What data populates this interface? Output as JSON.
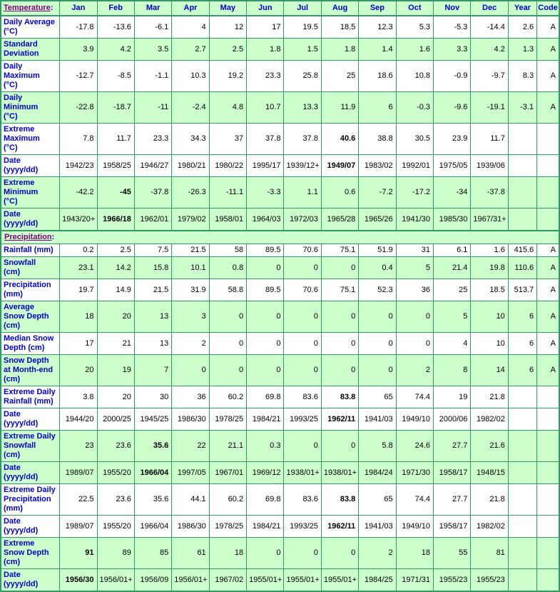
{
  "colors": {
    "border": "#339966",
    "cell_green": "#ccffcc",
    "header_text": "#0000cc",
    "label_text": "#0000cc",
    "section_link": "#800080",
    "data_text": "#000000"
  },
  "header": {
    "section_label": "Temperature",
    "colon": ":",
    "months": [
      "Jan",
      "Feb",
      "Mar",
      "Apr",
      "May",
      "Jun",
      "Jul",
      "Aug",
      "Sep",
      "Oct",
      "Nov",
      "Dec"
    ],
    "year_label": "Year",
    "code_label": "Code"
  },
  "temperature_rows": [
    {
      "label": "Daily Average\n(°C)",
      "shaded": false,
      "bold": [],
      "values": [
        "-17.8",
        "-13.6",
        "-6.1",
        "4",
        "12",
        "17",
        "19.5",
        "18.5",
        "12.3",
        "5.3",
        "-5.3",
        "-14.4",
        "2.6",
        "A"
      ]
    },
    {
      "label": "Standard\nDeviation",
      "shaded": true,
      "bold": [],
      "values": [
        "3.9",
        "4.2",
        "3.5",
        "2.7",
        "2.5",
        "1.8",
        "1.5",
        "1.8",
        "1.4",
        "1.6",
        "3.3",
        "4.2",
        "1.3",
        "A"
      ]
    },
    {
      "label": "Daily\nMaximum\n(°C)",
      "shaded": false,
      "bold": [],
      "values": [
        "-12.7",
        "-8.5",
        "-1.1",
        "10.3",
        "19.2",
        "23.3",
        "25.8",
        "25",
        "18.6",
        "10.8",
        "-0.9",
        "-9.7",
        "8.3",
        "A"
      ]
    },
    {
      "label": "Daily\nMinimum\n(°C)",
      "shaded": true,
      "bold": [],
      "values": [
        "-22.8",
        "-18.7",
        "-11",
        "-2.4",
        "4.8",
        "10.7",
        "13.3",
        "11.9",
        "6",
        "-0.3",
        "-9.6",
        "-19.1",
        "-3.1",
        "A"
      ]
    },
    {
      "label": "Extreme\nMaximum\n(°C)",
      "shaded": false,
      "bold": [
        7
      ],
      "values": [
        "7.8",
        "11.7",
        "23.3",
        "34.3",
        "37",
        "37.8",
        "37.8",
        "40.6",
        "38.8",
        "30.5",
        "23.9",
        "11.7",
        "",
        ""
      ]
    },
    {
      "label": "Date\n(yyyy/dd)",
      "shaded": false,
      "bold": [
        7
      ],
      "values": [
        "1942/23",
        "1958/25",
        "1946/27",
        "1980/21",
        "1980/22",
        "1995/17",
        "1939/12+",
        "1949/07",
        "1983/02",
        "1992/01",
        "1975/05",
        "1939/06",
        "",
        ""
      ]
    },
    {
      "label": "Extreme\nMinimum\n(°C)",
      "shaded": true,
      "bold": [
        1
      ],
      "values": [
        "-42.2",
        "-45",
        "-37.8",
        "-26.3",
        "-11.1",
        "-3.3",
        "1.1",
        "0.6",
        "-7.2",
        "-17.2",
        "-34",
        "-37.8",
        "",
        ""
      ]
    },
    {
      "label": "Date\n(yyyy/dd)",
      "shaded": true,
      "bold": [
        1
      ],
      "values": [
        "1943/20+",
        "1966/18",
        "1962/01",
        "1979/02",
        "1958/01",
        "1964/03",
        "1972/03",
        "1965/28",
        "1965/26",
        "1941/30",
        "1985/30",
        "1967/31+",
        "",
        ""
      ]
    }
  ],
  "precipitation": {
    "section_label": "Precipitation",
    "colon": ":"
  },
  "precipitation_rows": [
    {
      "label": "Rainfall (mm)",
      "shaded": false,
      "bold": [],
      "values": [
        "0.2",
        "2.5",
        "7.5",
        "21.5",
        "58",
        "89.5",
        "70.6",
        "75.1",
        "51.9",
        "31",
        "6.1",
        "1.6",
        "415.6",
        "A"
      ]
    },
    {
      "label": "Snowfall\n(cm)",
      "shaded": true,
      "bold": [],
      "values": [
        "23.1",
        "14.2",
        "15.8",
        "10.1",
        "0.8",
        "0",
        "0",
        "0",
        "0.4",
        "5",
        "21.4",
        "19.8",
        "110.6",
        "A"
      ]
    },
    {
      "label": "Precipitation\n(mm)",
      "shaded": false,
      "bold": [],
      "values": [
        "19.7",
        "14.9",
        "21.5",
        "31.9",
        "58.8",
        "89.5",
        "70.6",
        "75.1",
        "52.3",
        "36",
        "25",
        "18.5",
        "513.7",
        "A"
      ]
    },
    {
      "label": "Average\nSnow Depth\n(cm)",
      "shaded": true,
      "bold": [],
      "values": [
        "18",
        "20",
        "13",
        "3",
        "0",
        "0",
        "0",
        "0",
        "0",
        "0",
        "5",
        "10",
        "6",
        "A"
      ]
    },
    {
      "label": "Median Snow\nDepth (cm)",
      "shaded": false,
      "bold": [],
      "values": [
        "17",
        "21",
        "13",
        "2",
        "0",
        "0",
        "0",
        "0",
        "0",
        "0",
        "4",
        "10",
        "6",
        "A"
      ]
    },
    {
      "label": "Snow Depth\nat Month-end\n(cm)",
      "shaded": true,
      "bold": [],
      "values": [
        "20",
        "19",
        "7",
        "0",
        "0",
        "0",
        "0",
        "0",
        "0",
        "2",
        "8",
        "14",
        "6",
        "A"
      ]
    },
    {
      "label": "Extreme Daily\nRainfall (mm)",
      "shaded": false,
      "bold": [
        7
      ],
      "values": [
        "3.8",
        "20",
        "30",
        "36",
        "60.2",
        "69.8",
        "83.6",
        "83.8",
        "65",
        "74.4",
        "19",
        "21.8",
        "",
        ""
      ]
    },
    {
      "label": "Date\n(yyyy/dd)",
      "shaded": false,
      "bold": [
        7
      ],
      "values": [
        "1944/20",
        "2000/25",
        "1945/25",
        "1986/30",
        "1978/25",
        "1984/21",
        "1993/25",
        "1962/11",
        "1941/03",
        "1949/10",
        "2000/06",
        "1982/02",
        "",
        ""
      ]
    },
    {
      "label": "Extreme Daily\nSnowfall\n(cm)",
      "shaded": true,
      "bold": [
        2
      ],
      "values": [
        "23",
        "23.6",
        "35.6",
        "22",
        "21.1",
        "0.3",
        "0",
        "0",
        "5.8",
        "24.6",
        "27.7",
        "21.6",
        "",
        ""
      ]
    },
    {
      "label": "Date\n(yyyy/dd)",
      "shaded": true,
      "bold": [
        2
      ],
      "values": [
        "1989/07",
        "1955/20",
        "1966/04",
        "1997/05",
        "1967/01",
        "1969/12",
        "1938/01+",
        "1938/01+",
        "1984/24",
        "1971/30",
        "1958/17",
        "1948/15",
        "",
        ""
      ]
    },
    {
      "label": "Extreme Daily\nPrecipitation\n(mm)",
      "shaded": false,
      "bold": [
        7
      ],
      "values": [
        "22.5",
        "23.6",
        "35.6",
        "44.1",
        "60.2",
        "69.8",
        "83.6",
        "83.8",
        "65",
        "74.4",
        "27.7",
        "21.8",
        "",
        ""
      ]
    },
    {
      "label": "Date\n(yyyy/dd)",
      "shaded": false,
      "bold": [
        7
      ],
      "values": [
        "1989/07",
        "1955/20",
        "1966/04",
        "1986/30",
        "1978/25",
        "1984/21",
        "1993/25",
        "1962/11",
        "1941/03",
        "1949/10",
        "1958/17",
        "1982/02",
        "",
        ""
      ]
    },
    {
      "label": "Extreme\nSnow Depth\n(cm)",
      "shaded": true,
      "bold": [
        0
      ],
      "values": [
        "91",
        "89",
        "85",
        "61",
        "18",
        "0",
        "0",
        "0",
        "2",
        "18",
        "55",
        "81",
        "",
        ""
      ]
    },
    {
      "label": "Date\n(yyyy/dd)",
      "shaded": true,
      "bold": [
        0
      ],
      "values": [
        "1956/30",
        "1956/01+",
        "1956/09",
        "1956/01+",
        "1967/02",
        "1955/01+",
        "1955/01+",
        "1955/01+",
        "1984/25",
        "1971/31",
        "1955/23",
        "1955/23",
        "",
        ""
      ]
    }
  ]
}
